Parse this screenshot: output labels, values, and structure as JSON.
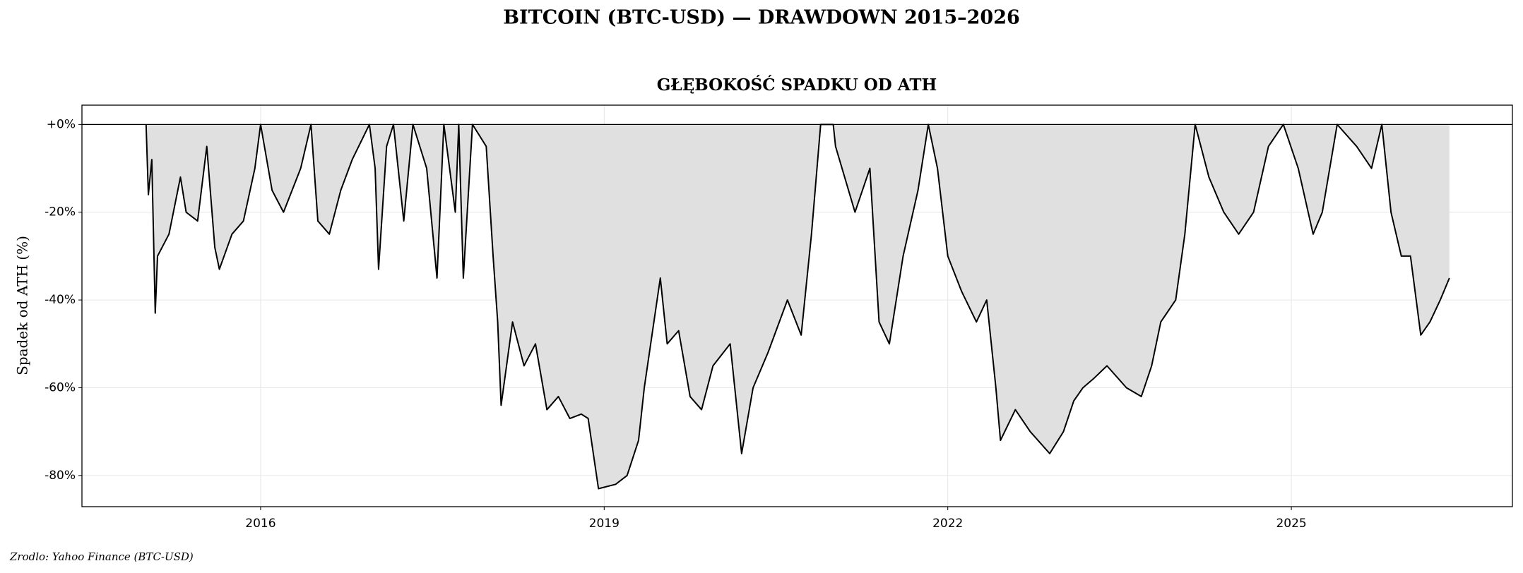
{
  "chart_data": {
    "type": "area",
    "title": "BITCOIN (BTC-USD) — DRAWDOWN 2015–2026",
    "subtitle": "GŁĘBOKOŚĆ SPADKU OD ATH",
    "y_label": "Spadek od ATH (%)",
    "source": "Zrodlo: Yahoo Finance (BTC-USD)",
    "line_color": "#000000",
    "fill_color": "#e0e0e0",
    "grid": true,
    "xlim": [
      2014.44,
      2026.93
    ],
    "ylim": [
      -87.1,
      4.4
    ],
    "xticks": [
      2016,
      2019,
      2022,
      2025
    ],
    "yticks": [
      {
        "value": 0,
        "label": "+0%"
      },
      {
        "value": -20,
        "label": "-20%"
      },
      {
        "value": -40,
        "label": "-40%"
      },
      {
        "value": -60,
        "label": "-60%"
      },
      {
        "value": -80,
        "label": "-80%"
      }
    ],
    "x": [
      2015.0,
      2015.02,
      2015.05,
      2015.08,
      2015.1,
      2015.2,
      2015.3,
      2015.35,
      2015.45,
      2015.53,
      2015.6,
      2015.64,
      2015.75,
      2015.85,
      2015.95,
      2016.0,
      2016.1,
      2016.2,
      2016.35,
      2016.44,
      2016.5,
      2016.6,
      2016.7,
      2016.8,
      2016.95,
      2017.0,
      2017.03,
      2017.1,
      2017.16,
      2017.25,
      2017.33,
      2017.45,
      2017.54,
      2017.6,
      2017.7,
      2017.73,
      2017.77,
      2017.85,
      2017.97,
      2018.03,
      2018.07,
      2018.1,
      2018.2,
      2018.3,
      2018.4,
      2018.5,
      2018.6,
      2018.7,
      2018.8,
      2018.86,
      2018.95,
      2019.1,
      2019.2,
      2019.3,
      2019.35,
      2019.49,
      2019.55,
      2019.65,
      2019.75,
      2019.85,
      2019.95,
      2020.1,
      2020.2,
      2020.3,
      2020.43,
      2020.6,
      2020.72,
      2020.81,
      2020.89,
      2021.0,
      2021.02,
      2021.19,
      2021.32,
      2021.4,
      2021.49,
      2021.61,
      2021.74,
      2021.83,
      2021.91,
      2022.0,
      2022.12,
      2022.25,
      2022.34,
      2022.42,
      2022.46,
      2022.59,
      2022.72,
      2022.89,
      2023.01,
      2023.1,
      2023.18,
      2023.27,
      2023.39,
      2023.56,
      2023.69,
      2023.78,
      2023.86,
      2023.99,
      2024.07,
      2024.16,
      2024.28,
      2024.41,
      2024.54,
      2024.67,
      2024.8,
      2024.93,
      2025.06,
      2025.19,
      2025.27,
      2025.4,
      2025.57,
      2025.7,
      2025.79,
      2025.87,
      2025.96,
      2026.04,
      2026.13,
      2026.21,
      2026.3,
      2026.38
    ],
    "values": [
      0,
      -16,
      -8,
      -43,
      -30,
      -25,
      -12,
      -20,
      -22,
      -5,
      -28,
      -33,
      -25,
      -22,
      -10,
      0,
      -15,
      -20,
      -10,
      0,
      -22,
      -25,
      -15,
      -8,
      0,
      -10,
      -33,
      -5,
      0,
      -22,
      0,
      -10,
      -35,
      0,
      -20,
      0,
      -35,
      0,
      -5,
      -30,
      -45,
      -64,
      -45,
      -55,
      -50,
      -65,
      -62,
      -67,
      -66,
      -67,
      -83,
      -82,
      -80,
      -72,
      -60,
      -35,
      -50,
      -47,
      -62,
      -65,
      -55,
      -50,
      -75,
      -60,
      -52,
      -40,
      -48,
      -25,
      0,
      0,
      -5,
      -20,
      -10,
      -45,
      -50,
      -30,
      -15,
      0,
      -10,
      -30,
      -38,
      -45,
      -40,
      -60,
      -72,
      -65,
      -70,
      -75,
      -70,
      -63,
      -60,
      -58,
      -55,
      -60,
      -62,
      -55,
      -45,
      -40,
      -25,
      0,
      -12,
      -20,
      -25,
      -20,
      -5,
      0,
      -10,
      -25,
      -20,
      0,
      -5,
      -10,
      0,
      -20,
      -30,
      -30,
      -48,
      -45,
      -40,
      -35
    ]
  }
}
